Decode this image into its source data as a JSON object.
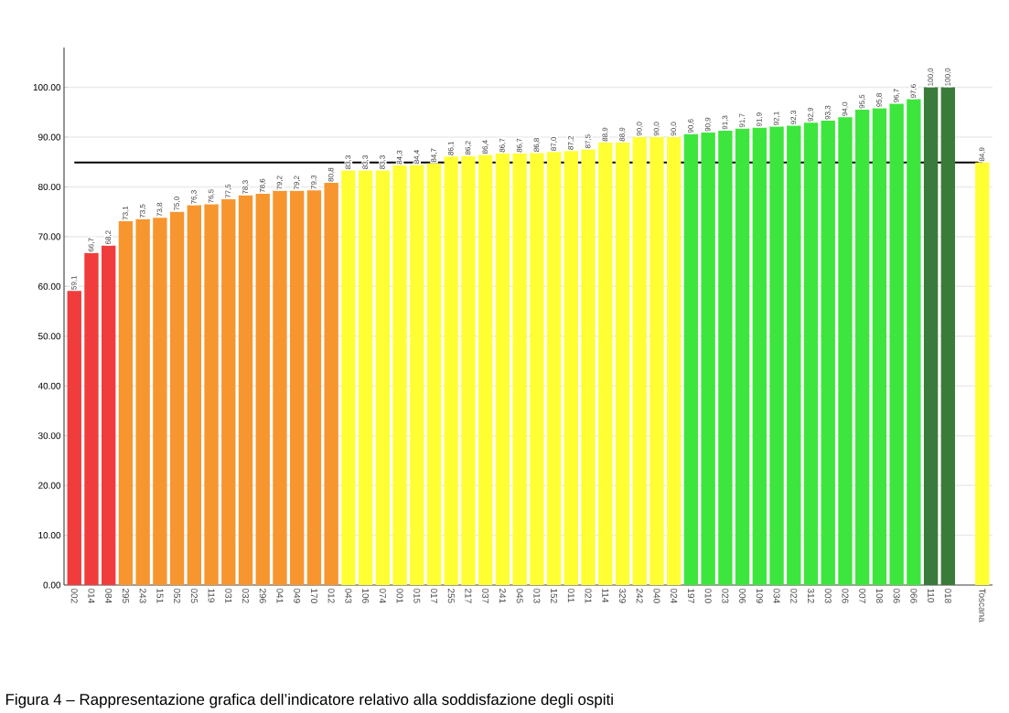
{
  "chart_data": {
    "type": "bar",
    "categories": [
      "002",
      "014",
      "084",
      "295",
      "243",
      "151",
      "052",
      "025",
      "119",
      "031",
      "032",
      "296",
      "041",
      "049",
      "170",
      "012",
      "043",
      "106",
      "074",
      "001",
      "015",
      "017",
      "255",
      "217",
      "037",
      "241",
      "045",
      "013",
      "152",
      "011",
      "021",
      "114",
      "329",
      "242",
      "040",
      "024",
      "197",
      "010",
      "023",
      "006",
      "109",
      "034",
      "022",
      "312",
      "003",
      "026",
      "007",
      "108",
      "036",
      "066",
      "110",
      "018",
      null,
      "Toscana"
    ],
    "values": [
      59.1,
      66.7,
      68.2,
      73.1,
      73.5,
      73.8,
      75.0,
      76.3,
      76.5,
      77.5,
      78.3,
      78.6,
      79.2,
      79.2,
      79.3,
      80.8,
      83.3,
      83.3,
      83.3,
      84.3,
      84.4,
      84.7,
      86.1,
      86.2,
      86.4,
      86.7,
      86.7,
      86.8,
      87.0,
      87.2,
      87.5,
      88.9,
      88.9,
      90.0,
      90.0,
      90.0,
      90.6,
      90.9,
      91.3,
      91.7,
      91.9,
      92.1,
      92.3,
      92.9,
      93.3,
      94.0,
      95.5,
      95.8,
      96.7,
      97.6,
      100.0,
      100.0,
      null,
      84.9
    ],
    "value_labels": [
      "59,1",
      "66,7",
      "68,2",
      "73,1",
      "73,5",
      "73,8",
      "75,0",
      "76,3",
      "76,5",
      "77,5",
      "78,3",
      "78,6",
      "79,2",
      "79,2",
      "79,3",
      "80,8",
      "83,3",
      "83,3",
      "83,3",
      "84,3",
      "84,4",
      "84,7",
      "86,1",
      "86,2",
      "86,4",
      "86,7",
      "86,7",
      "86,8",
      "87,0",
      "87,2",
      "87,5",
      "88,9",
      "88,9",
      "90,0",
      "90,0",
      "90,0",
      "90,6",
      "90,9",
      "91,3",
      "91,7",
      "91,9",
      "92,1",
      "92,3",
      "92,9",
      "93,3",
      "94,0",
      "95,5",
      "95,8",
      "96,7",
      "97,6",
      "100,0",
      "100,0",
      null,
      "84,9"
    ],
    "colors": [
      "#f03c3c",
      "#f03c3c",
      "#f03c3c",
      "#f7962f",
      "#f7962f",
      "#f7962f",
      "#f7962f",
      "#f7962f",
      "#f7962f",
      "#f7962f",
      "#f7962f",
      "#f7962f",
      "#f7962f",
      "#f7962f",
      "#f7962f",
      "#f7962f",
      "#ffff33",
      "#ffff33",
      "#ffff33",
      "#ffff33",
      "#ffff33",
      "#ffff33",
      "#ffff33",
      "#ffff33",
      "#ffff33",
      "#ffff33",
      "#ffff33",
      "#ffff33",
      "#ffff33",
      "#ffff33",
      "#ffff33",
      "#ffff33",
      "#ffff33",
      "#ffff33",
      "#ffff33",
      "#ffff33",
      "#3de63d",
      "#3de63d",
      "#3de63d",
      "#3de63d",
      "#3de63d",
      "#3de63d",
      "#3de63d",
      "#3de63d",
      "#3de63d",
      "#3de63d",
      "#3de63d",
      "#3de63d",
      "#3de63d",
      "#3de63d",
      "#3a7a3a",
      "#3a7a3a",
      "#ffffff",
      "#ffff33"
    ],
    "ylim": [
      0,
      108
    ],
    "yticks": [
      {
        "value": 0,
        "label": "0.00"
      },
      {
        "value": 10,
        "label": "10.00"
      },
      {
        "value": 20,
        "label": "20.00"
      },
      {
        "value": 30,
        "label": "30.00"
      },
      {
        "value": 40,
        "label": "40.00"
      },
      {
        "value": 50,
        "label": "50.00"
      },
      {
        "value": 60,
        "label": "60.00"
      },
      {
        "value": 70,
        "label": "70.00"
      },
      {
        "value": 80,
        "label": "80.00"
      },
      {
        "value": 90,
        "label": "90.00"
      },
      {
        "value": 100,
        "label": "100.00"
      }
    ],
    "grid": "y",
    "ref_lines": [
      {
        "axis": "y",
        "value": 84.9,
        "color": "#000000"
      }
    ],
    "annotations": [
      "Figura 4 – Rappresentazione grafica dell’indicatore relativo alla soddisfazione degli ospiti"
    ]
  }
}
